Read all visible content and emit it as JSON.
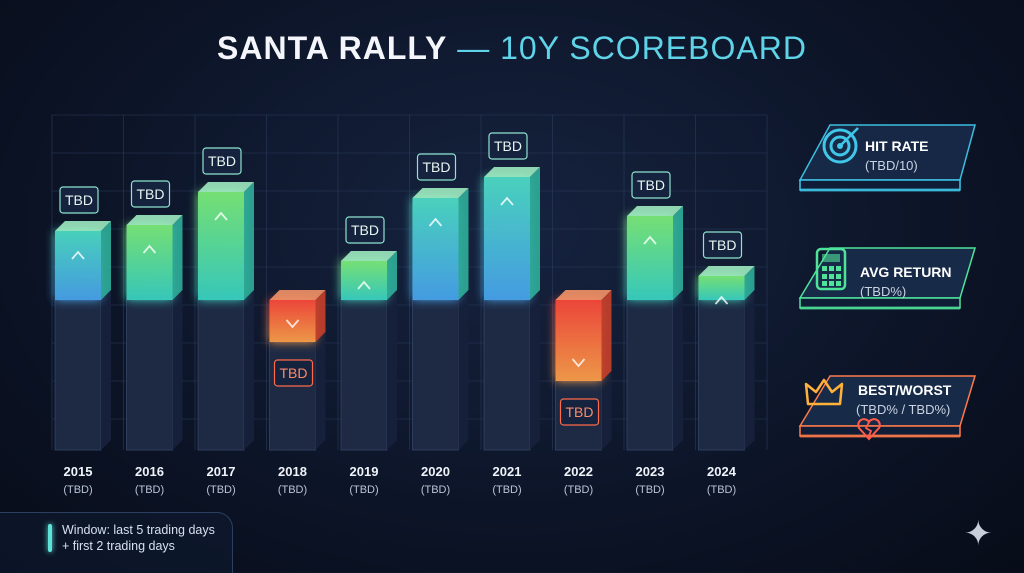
{
  "title": {
    "main": "SANTA RALLY",
    "dash": " — ",
    "sub": "10Y SCOREBOARD"
  },
  "chart_data": {
    "type": "bar",
    "categories": [
      "2015",
      "2016",
      "2017",
      "2018",
      "2019",
      "2020",
      "2021",
      "2022",
      "2023",
      "2024"
    ],
    "sublabels": [
      "(TBD)",
      "(TBD)",
      "(TBD)",
      "(TBD)",
      "(TBD)",
      "(TBD)",
      "(TBD)",
      "(TBD)",
      "(TBD)",
      "(TBD)"
    ],
    "value_labels": [
      "TBD",
      "TBD",
      "TBD",
      "TBD",
      "TBD",
      "TBD",
      "TBD",
      "TBD",
      "TBD",
      "TBD"
    ],
    "values": [
      2.3,
      2.5,
      3.6,
      -1.4,
      1.3,
      3.4,
      4.1,
      -2.7,
      2.8,
      0.8
    ],
    "ylim": [
      -4,
      6
    ],
    "direction_up_color": "#4fe3b0",
    "direction_down_color": "#ff6a3d"
  },
  "stats": [
    {
      "label": "HIT RATE",
      "value": "(TBD/10)",
      "icon": "target-icon",
      "color": "#3fc6e8"
    },
    {
      "label": "AVG RETURN",
      "value": "(TBD%)",
      "icon": "calculator-icon",
      "color": "#4fe39a"
    },
    {
      "label": "BEST/WORST",
      "value": "(TBD% / TBD%)",
      "icon": "crown-icon",
      "color": "#ff7a4a"
    }
  ],
  "legend": {
    "line1": "Window: last 5 trading days",
    "line2": "+ first 2 trading days"
  }
}
